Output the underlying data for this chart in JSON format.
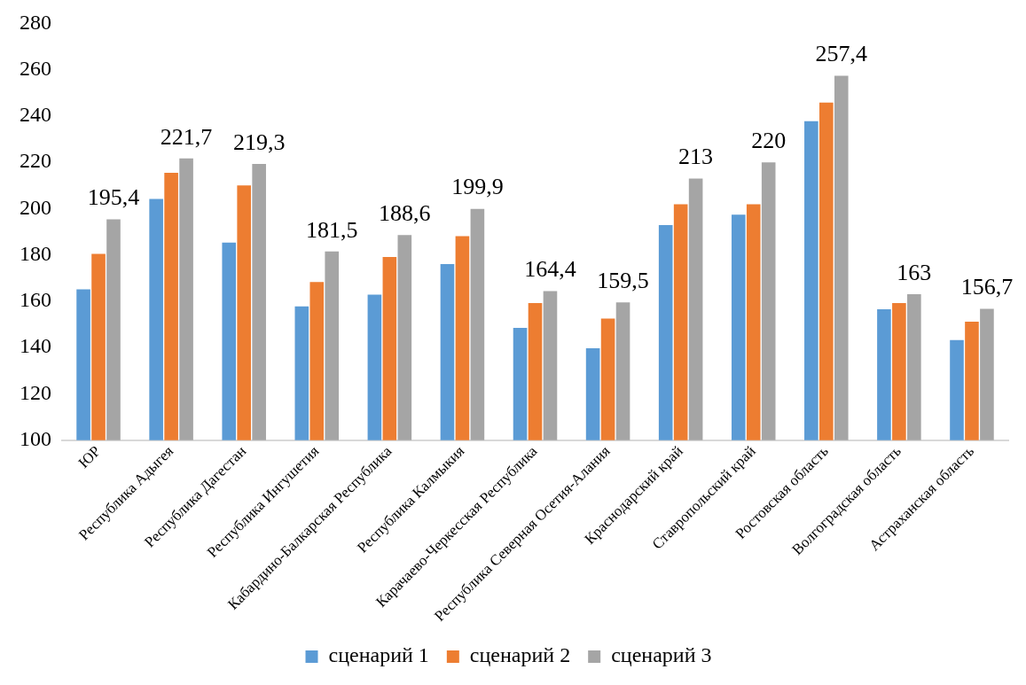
{
  "chart_data": {
    "type": "bar",
    "categories": [
      "ЮР",
      "Республика Адыгея",
      "Республика Дагестан",
      "Республика Ингушетия",
      "Кабардино-Балкарская Республика",
      "Республика Калмыкия",
      "Карачаево-Черкесская Республика",
      "Республика Северная Осетия-Алания",
      "Краснодарский край",
      "Ставропольский край",
      "Ростовская область",
      "Волгоградская область",
      "Астраханская область"
    ],
    "series": [
      {
        "name": "сценарий 1",
        "color": "#5b9bd5",
        "values": [
          165.1,
          204.2,
          185.3,
          157.8,
          162.8,
          176,
          148.5,
          139.7,
          192.9,
          197.4,
          237.8,
          156.5,
          143.2
        ]
      },
      {
        "name": "сценарий 2",
        "color": "#ed7d31",
        "values": [
          180.4,
          215.5,
          210,
          168.3,
          179.1,
          188.1,
          159.2,
          152.5,
          201.9,
          201.9,
          245.8,
          159.2,
          151.2
        ]
      },
      {
        "name": "сценарий 3",
        "color": "#a5a5a5",
        "values": [
          195.4,
          221.7,
          219.3,
          181.5,
          188.6,
          199.9,
          164.4,
          159.5,
          213,
          220,
          257.4,
          163,
          156.7
        ],
        "value_labels": [
          "195,4",
          "221,7",
          "219,3",
          "181,5",
          "188,6",
          "199,9",
          "164,4",
          "159,5",
          "213",
          "220",
          "257,4",
          "163",
          "156,7"
        ]
      }
    ],
    "ylim": [
      100,
      280
    ],
    "yticks": [
      100,
      120,
      140,
      160,
      180,
      200,
      220,
      240,
      260,
      280
    ],
    "grid": false,
    "legend": "bottom"
  }
}
